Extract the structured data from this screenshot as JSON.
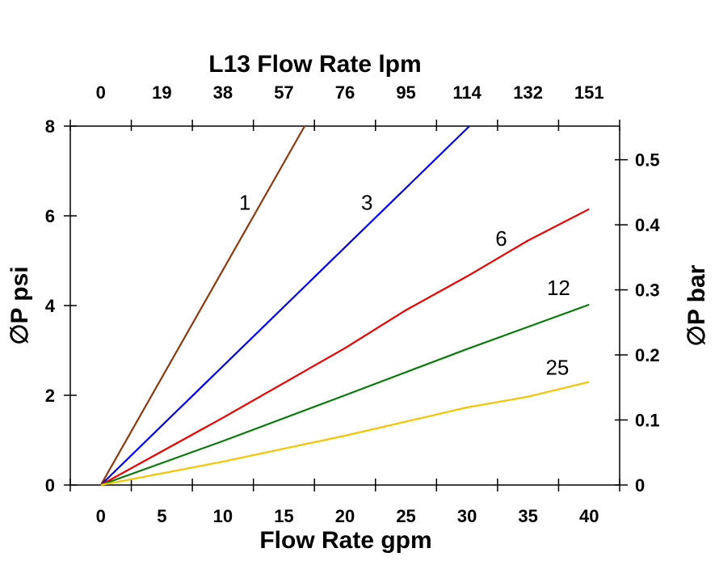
{
  "chart_data": {
    "type": "line",
    "title": "",
    "xlabel": "Flow Rate gpm",
    "x2label": "L13 Flow Rate lpm",
    "ylabel": "∅P psi",
    "y2label": "∅P bar",
    "xlim": [
      -2.5,
      42.5
    ],
    "ylim": [
      0,
      8
    ],
    "x_ticks": [
      0,
      5,
      10,
      15,
      20,
      25,
      30,
      35,
      40
    ],
    "x_tick_labels": [
      "0",
      "5",
      "10",
      "15",
      "20",
      "25",
      "30",
      "35",
      "40"
    ],
    "x2_tick_labels": [
      "0",
      "19",
      "38",
      "57",
      "76",
      "95",
      "114",
      "132",
      "151"
    ],
    "y_ticks": [
      0,
      2,
      4,
      6,
      8
    ],
    "y_tick_labels": [
      "0",
      "2",
      "4",
      "6",
      "8"
    ],
    "y2_ticks": [
      0,
      0.1,
      0.2,
      0.3,
      0.4,
      0.5
    ],
    "y2_tick_labels": [
      "0",
      "0.1",
      "0.2",
      "0.3",
      "0.4",
      "0.5"
    ],
    "psi_per_bar": 14.5,
    "grid": false,
    "legend": "none (inline line labels)",
    "series": [
      {
        "name": "1",
        "color": "#8b3a0f",
        "x": [
          0,
          16.7
        ],
        "y": [
          0,
          8
        ],
        "label_at": [
          11.8,
          6.3
        ]
      },
      {
        "name": "3",
        "color": "#0000ee",
        "x": [
          0,
          30.2
        ],
        "y": [
          0,
          8
        ],
        "label_at": [
          21.8,
          6.3
        ]
      },
      {
        "name": "6",
        "color": "#ee0000",
        "x": [
          0,
          10,
          20,
          25,
          30,
          35,
          40
        ],
        "y": [
          0,
          1.5,
          3.05,
          3.9,
          4.65,
          5.45,
          6.15
        ],
        "label_at": [
          32.8,
          5.5
        ]
      },
      {
        "name": "12",
        "color": "#0a7a0a",
        "x": [
          0,
          10,
          20,
          30,
          40
        ],
        "y": [
          0,
          0.98,
          2.0,
          3.03,
          4.02
        ],
        "label_at": [
          37.5,
          4.4
        ]
      },
      {
        "name": "25",
        "color": "#f5c400",
        "x": [
          0,
          10,
          20,
          30,
          35,
          40
        ],
        "y": [
          0,
          0.52,
          1.1,
          1.73,
          1.97,
          2.3
        ],
        "label_at": [
          37.4,
          2.62
        ]
      }
    ]
  }
}
